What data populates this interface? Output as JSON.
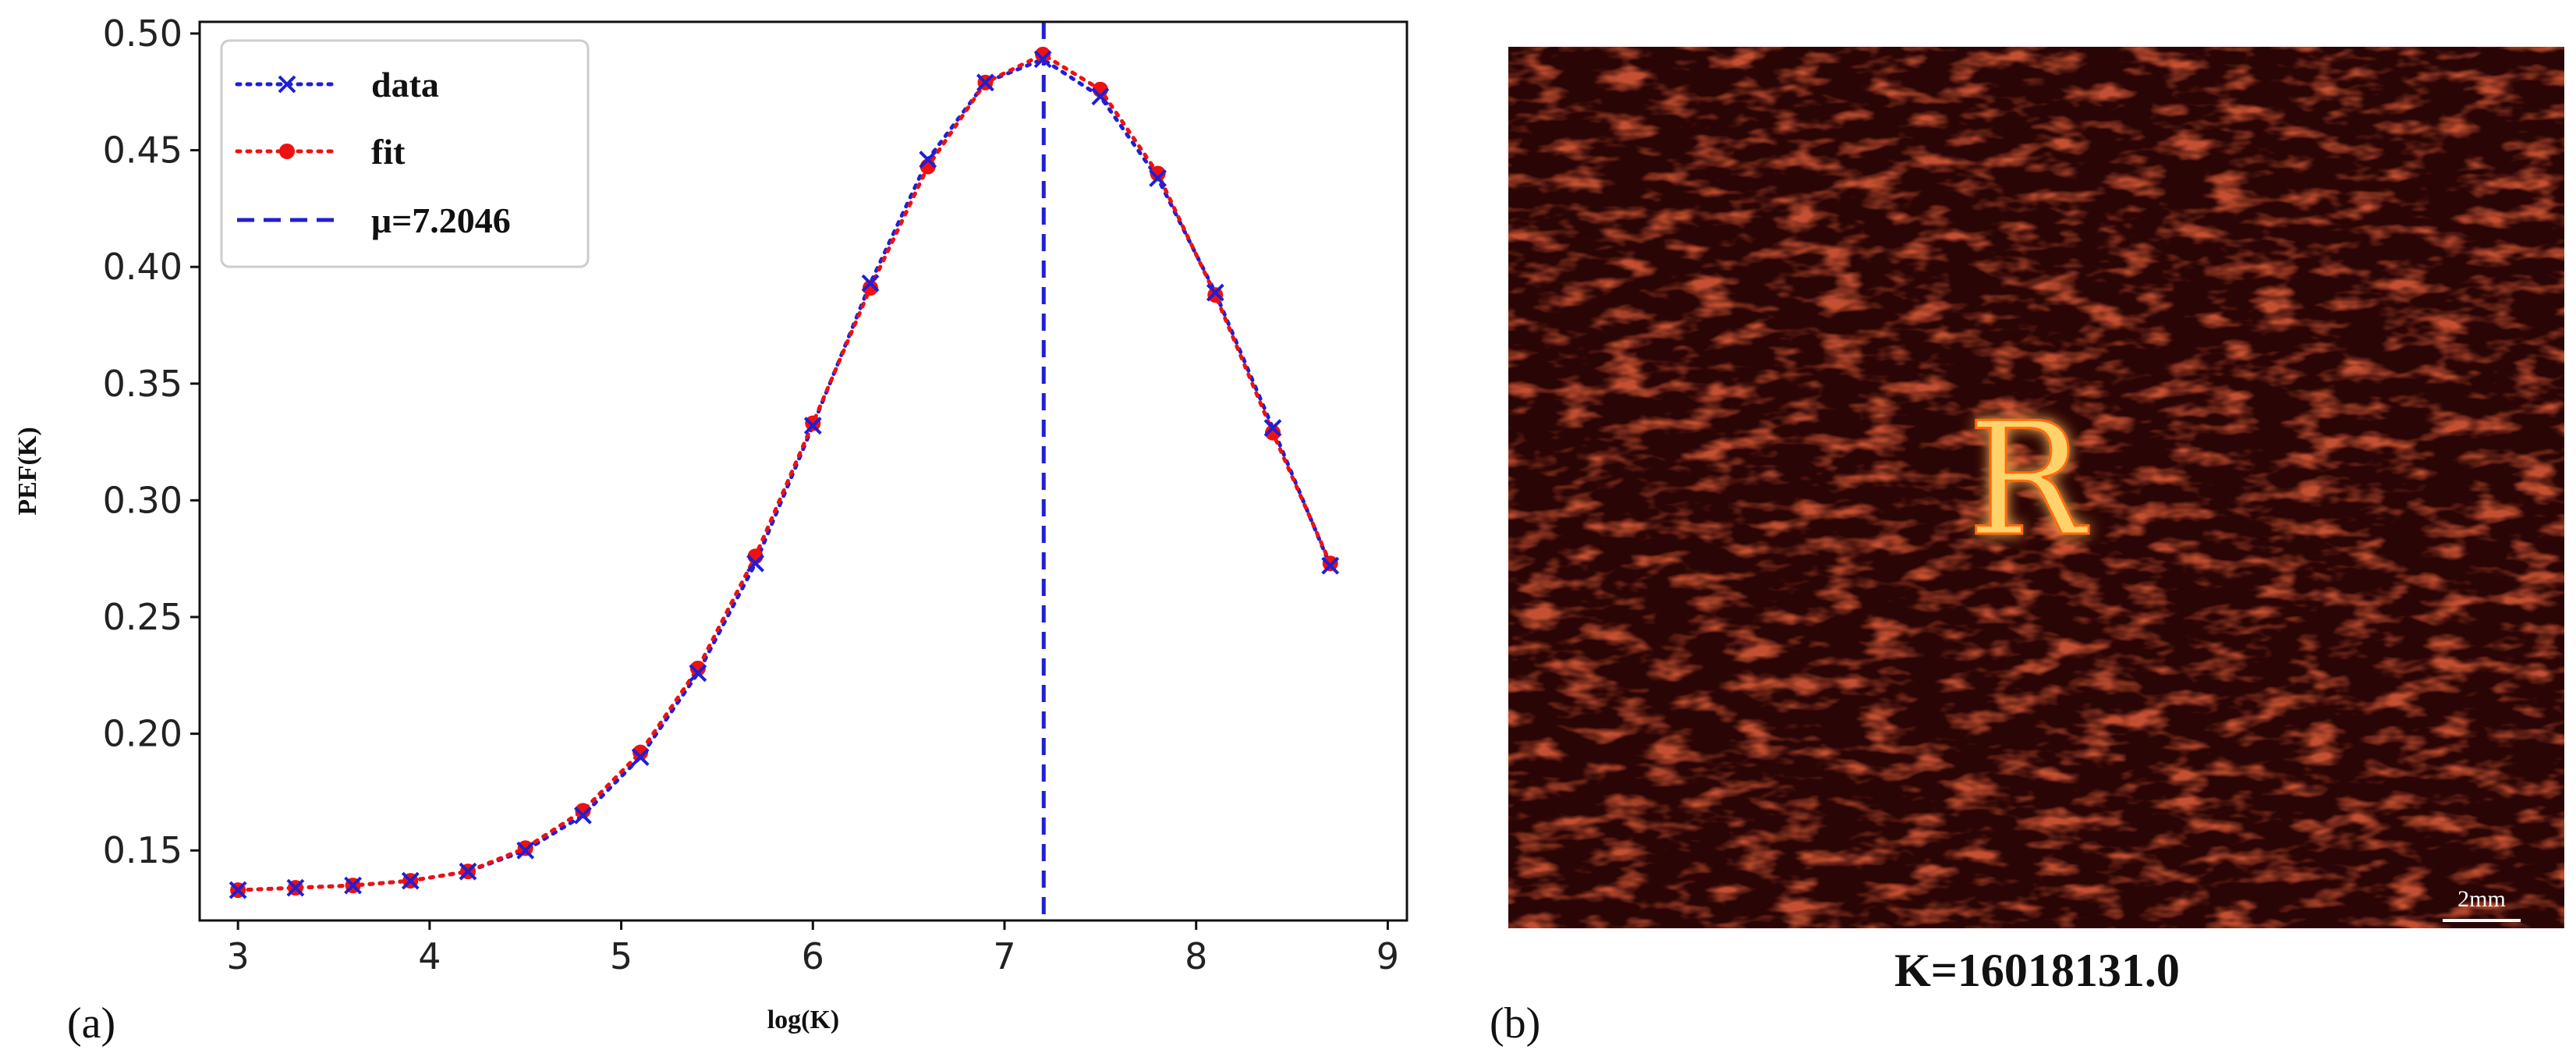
{
  "chart_data": [
    {
      "type": "line",
      "panel_label": "(a)",
      "xlabel": "log(K)",
      "ylabel": "PEF(K)",
      "xlim": [
        2.8,
        9.1
      ],
      "ylim": [
        0.12,
        0.505
      ],
      "xticks": [
        3,
        4,
        5,
        6,
        7,
        8,
        9
      ],
      "yticks": [
        0.15,
        0.2,
        0.25,
        0.3,
        0.35,
        0.4,
        0.45,
        0.5
      ],
      "xtick_labels": [
        "3",
        "4",
        "5",
        "6",
        "7",
        "8",
        "9"
      ],
      "ytick_labels": [
        "0.15",
        "0.20",
        "0.25",
        "0.30",
        "0.35",
        "0.40",
        "0.45",
        "0.50"
      ],
      "grid": false,
      "legend_position": "top-left",
      "x": [
        3.0,
        3.3,
        3.6,
        3.9,
        4.2,
        4.5,
        4.8,
        5.1,
        5.4,
        5.7,
        6.0,
        6.3,
        6.6,
        6.9,
        7.2,
        7.5,
        7.8,
        8.1,
        8.4,
        8.7
      ],
      "series": [
        {
          "name": "data",
          "style": "dotted",
          "marker": "x",
          "color": "#1f1fd6",
          "values": [
            0.133,
            0.134,
            0.135,
            0.137,
            0.141,
            0.15,
            0.165,
            0.19,
            0.226,
            0.273,
            0.332,
            0.393,
            0.446,
            0.479,
            0.489,
            0.473,
            0.438,
            0.389,
            0.331,
            0.272
          ]
        },
        {
          "name": "fit",
          "style": "dotted",
          "marker": "circle",
          "color": "#ee1111",
          "values": [
            0.133,
            0.134,
            0.135,
            0.137,
            0.141,
            0.151,
            0.167,
            0.192,
            0.228,
            0.276,
            0.333,
            0.391,
            0.443,
            0.479,
            0.491,
            0.476,
            0.44,
            0.388,
            0.329,
            0.273
          ]
        }
      ],
      "vline": {
        "name": "μ=7.2046",
        "x": 7.2046,
        "style": "dashed",
        "color": "#1f1fd6"
      }
    },
    {
      "type": "image",
      "panel_label": "(b)",
      "caption": "K=16018131.0",
      "letter": "R",
      "scale_bar_label": "2mm",
      "background_color": "#2a0505",
      "speckle_color": "#6e1208",
      "letter_color": "#ffd26a",
      "letter_glow_color": "#ff6a10"
    }
  ]
}
